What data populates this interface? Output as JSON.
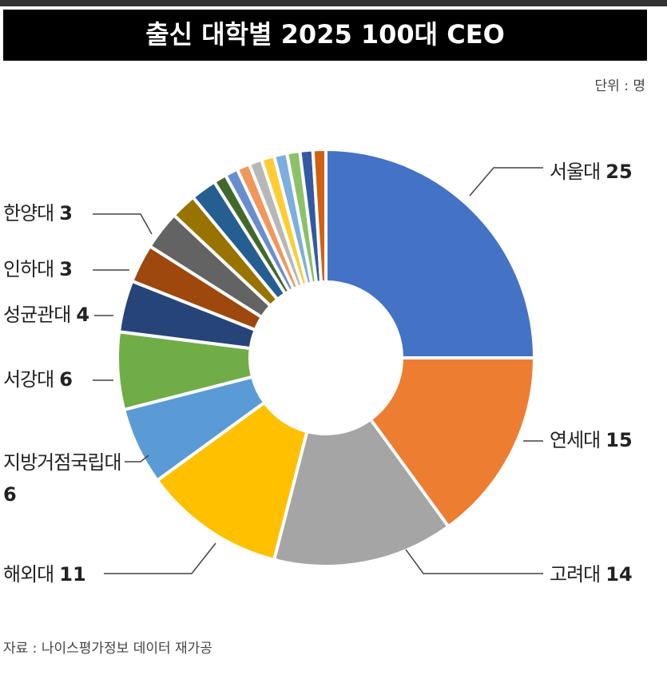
{
  "chart_data": {
    "type": "donut",
    "title": "출신 대학별 2025 100대 CEO",
    "unit": "단위 : 명",
    "source": "자료 : 나이스평가정보 데이터 재가공",
    "categories": [
      "서울대",
      "연세대",
      "고려대",
      "해외대",
      "지방거점국립대",
      "서강대",
      "성균관대",
      "인하대",
      "한양대",
      null,
      null,
      null,
      null,
      null,
      null,
      null,
      null,
      null,
      null,
      null
    ],
    "values": [
      25,
      15,
      14,
      11,
      6,
      6,
      4,
      3,
      3,
      2,
      2,
      1,
      1,
      1,
      1,
      1,
      1,
      1,
      1,
      1
    ],
    "colors": [
      "#4472c4",
      "#ed7d31",
      "#a5a5a5",
      "#ffc000",
      "#5b9bd5",
      "#70ad47",
      "#264478",
      "#9e480e",
      "#636363",
      "#997300",
      "#255e91",
      "#43682b",
      "#698ed0",
      "#f1975a",
      "#b7b7b7",
      "#ffcd33",
      "#7cafdd",
      "#8cc168",
      "#335aa1",
      "#d26012"
    ]
  }
}
